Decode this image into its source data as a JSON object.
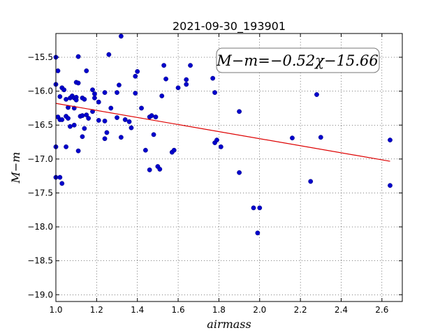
{
  "chart_data": {
    "type": "scatter",
    "title": "2021-09-30_193901",
    "xlabel": "airmass",
    "ylabel": "M−m",
    "xlim": [
      1.0,
      2.7
    ],
    "ylim": [
      -19.1,
      -15.15
    ],
    "xticks": [
      1.0,
      1.2,
      1.4,
      1.6,
      1.8,
      2.0,
      2.2,
      2.4,
      2.6
    ],
    "xtick_labels": [
      "1.0",
      "1.2",
      "1.4",
      "1.6",
      "1.8",
      "2.0",
      "2.2",
      "2.4",
      "2.6"
    ],
    "yticks": [
      -15.5,
      -16.0,
      -16.5,
      -17.0,
      -17.5,
      -18.0,
      -18.5,
      -19.0
    ],
    "ytick_labels": [
      "−15.5",
      "−16.0",
      "−16.5",
      "−17.0",
      "−17.5",
      "−18.0",
      "−18.5",
      "−19.0"
    ],
    "grid": true,
    "point_color": "#0000cc",
    "fit_color": "#dd0000",
    "annotation": "M−m=−0.52χ−15.66",
    "fit": {
      "slope": -0.52,
      "intercept": -15.66,
      "x_start": 1.0,
      "x_end": 2.64
    },
    "points": [
      {
        "x": 1.0,
        "y": -15.5
      },
      {
        "x": 1.01,
        "y": -15.7
      },
      {
        "x": 1.0,
        "y": -15.9
      },
      {
        "x": 1.02,
        "y": -16.08
      },
      {
        "x": 1.03,
        "y": -15.95
      },
      {
        "x": 1.04,
        "y": -15.98
      },
      {
        "x": 1.05,
        "y": -16.12
      },
      {
        "x": 1.06,
        "y": -16.24
      },
      {
        "x": 1.07,
        "y": -16.1
      },
      {
        "x": 1.08,
        "y": -16.07
      },
      {
        "x": 1.09,
        "y": -16.1
      },
      {
        "x": 1.1,
        "y": -15.87
      },
      {
        "x": 1.11,
        "y": -15.88
      },
      {
        "x": 1.11,
        "y": -15.49
      },
      {
        "x": 1.15,
        "y": -15.7
      },
      {
        "x": 1.1,
        "y": -16.09
      },
      {
        "x": 1.1,
        "y": -16.13
      },
      {
        "x": 1.09,
        "y": -16.25
      },
      {
        "x": 1.13,
        "y": -16.1
      },
      {
        "x": 1.14,
        "y": -16.12
      },
      {
        "x": 1.18,
        "y": -15.98
      },
      {
        "x": 1.19,
        "y": -16.04
      },
      {
        "x": 1.19,
        "y": -16.1
      },
      {
        "x": 1.21,
        "y": -16.16
      },
      {
        "x": 1.24,
        "y": -16.02
      },
      {
        "x": 1.26,
        "y": -15.46
      },
      {
        "x": 1.3,
        "y": -16.02
      },
      {
        "x": 1.31,
        "y": -15.91
      },
      {
        "x": 1.32,
        "y": -15.19
      },
      {
        "x": 1.27,
        "y": -16.25
      },
      {
        "x": 1.01,
        "y": -16.38
      },
      {
        "x": 1.02,
        "y": -16.42
      },
      {
        "x": 1.03,
        "y": -16.42
      },
      {
        "x": 1.05,
        "y": -16.37
      },
      {
        "x": 1.06,
        "y": -16.4
      },
      {
        "x": 1.07,
        "y": -16.52
      },
      {
        "x": 1.09,
        "y": -16.5
      },
      {
        "x": 1.12,
        "y": -16.37
      },
      {
        "x": 1.13,
        "y": -16.36
      },
      {
        "x": 1.15,
        "y": -16.35
      },
      {
        "x": 1.16,
        "y": -16.4
      },
      {
        "x": 1.18,
        "y": -16.3
      },
      {
        "x": 1.21,
        "y": -16.43
      },
      {
        "x": 1.24,
        "y": -16.44
      },
      {
        "x": 1.14,
        "y": -16.55
      },
      {
        "x": 1.13,
        "y": -16.67
      },
      {
        "x": 1.11,
        "y": -16.88
      },
      {
        "x": 1.05,
        "y": -16.82
      },
      {
        "x": 1.0,
        "y": -16.82
      },
      {
        "x": 1.0,
        "y": -17.27
      },
      {
        "x": 1.02,
        "y": -17.27
      },
      {
        "x": 1.03,
        "y": -17.36
      },
      {
        "x": 1.25,
        "y": -16.61
      },
      {
        "x": 1.24,
        "y": -16.7
      },
      {
        "x": 1.3,
        "y": -16.39
      },
      {
        "x": 1.32,
        "y": -16.68
      },
      {
        "x": 1.34,
        "y": -16.42
      },
      {
        "x": 1.36,
        "y": -16.45
      },
      {
        "x": 1.37,
        "y": -16.54
      },
      {
        "x": 1.39,
        "y": -16.03
      },
      {
        "x": 1.39,
        "y": -15.78
      },
      {
        "x": 1.4,
        "y": -15.71
      },
      {
        "x": 1.42,
        "y": -16.25
      },
      {
        "x": 1.44,
        "y": -16.87
      },
      {
        "x": 1.46,
        "y": -17.16
      },
      {
        "x": 1.46,
        "y": -16.38
      },
      {
        "x": 1.47,
        "y": -16.36
      },
      {
        "x": 1.48,
        "y": -16.64
      },
      {
        "x": 1.49,
        "y": -16.38
      },
      {
        "x": 1.5,
        "y": -17.11
      },
      {
        "x": 1.51,
        "y": -17.15
      },
      {
        "x": 1.52,
        "y": -16.07
      },
      {
        "x": 1.53,
        "y": -15.62
      },
      {
        "x": 1.54,
        "y": -15.82
      },
      {
        "x": 1.57,
        "y": -16.9
      },
      {
        "x": 1.58,
        "y": -16.87
      },
      {
        "x": 1.6,
        "y": -15.95
      },
      {
        "x": 1.64,
        "y": -15.9
      },
      {
        "x": 1.64,
        "y": -15.83
      },
      {
        "x": 1.66,
        "y": -15.62
      },
      {
        "x": 1.77,
        "y": -15.81
      },
      {
        "x": 1.78,
        "y": -16.02
      },
      {
        "x": 1.78,
        "y": -16.76
      },
      {
        "x": 1.79,
        "y": -16.72
      },
      {
        "x": 1.81,
        "y": -16.82
      },
      {
        "x": 1.9,
        "y": -16.3
      },
      {
        "x": 1.9,
        "y": -17.2
      },
      {
        "x": 1.97,
        "y": -17.72
      },
      {
        "x": 1.99,
        "y": -18.09
      },
      {
        "x": 2.0,
        "y": -17.72
      },
      {
        "x": 2.16,
        "y": -16.69
      },
      {
        "x": 2.25,
        "y": -17.33
      },
      {
        "x": 2.28,
        "y": -16.05
      },
      {
        "x": 2.3,
        "y": -16.68
      },
      {
        "x": 2.64,
        "y": -16.72
      },
      {
        "x": 2.64,
        "y": -17.39
      }
    ]
  }
}
